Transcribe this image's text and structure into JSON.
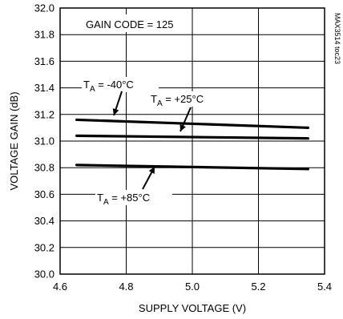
{
  "chart_data": {
    "type": "line",
    "annotation_box": "GAIN CODE = 125",
    "figure_id": "MAX3514 toc23",
    "xlabel": "SUPPLY VOLTAGE (V)",
    "ylabel": "VOLTAGE GAIN (dB)",
    "xlim": [
      4.6,
      5.4
    ],
    "ylim": [
      30.0,
      32.0
    ],
    "x_ticks": [
      "4.6",
      "4.8",
      "5.0",
      "5.2",
      "5.4"
    ],
    "y_ticks": [
      "30.0",
      "30.2",
      "30.4",
      "30.6",
      "30.8",
      "31.0",
      "31.2",
      "31.4",
      "31.6",
      "31.8",
      "32.0"
    ],
    "grid": true,
    "series": [
      {
        "name": "-40°C",
        "x": [
          4.65,
          5.35
        ],
        "y": [
          31.16,
          31.1
        ]
      },
      {
        "name": "+25°C",
        "x": [
          4.65,
          5.35
        ],
        "y": [
          31.04,
          31.02
        ]
      },
      {
        "name": "+85°C",
        "x": [
          4.65,
          5.35
        ],
        "y": [
          30.82,
          30.79
        ]
      }
    ],
    "series_labels": [
      {
        "prefix": "T",
        "sub": "A",
        "suffix": " = -40°C"
      },
      {
        "prefix": "T",
        "sub": "A",
        "suffix": " = +25°C"
      },
      {
        "prefix": "T",
        "sub": "A",
        "suffix": " = +85°C"
      }
    ]
  }
}
